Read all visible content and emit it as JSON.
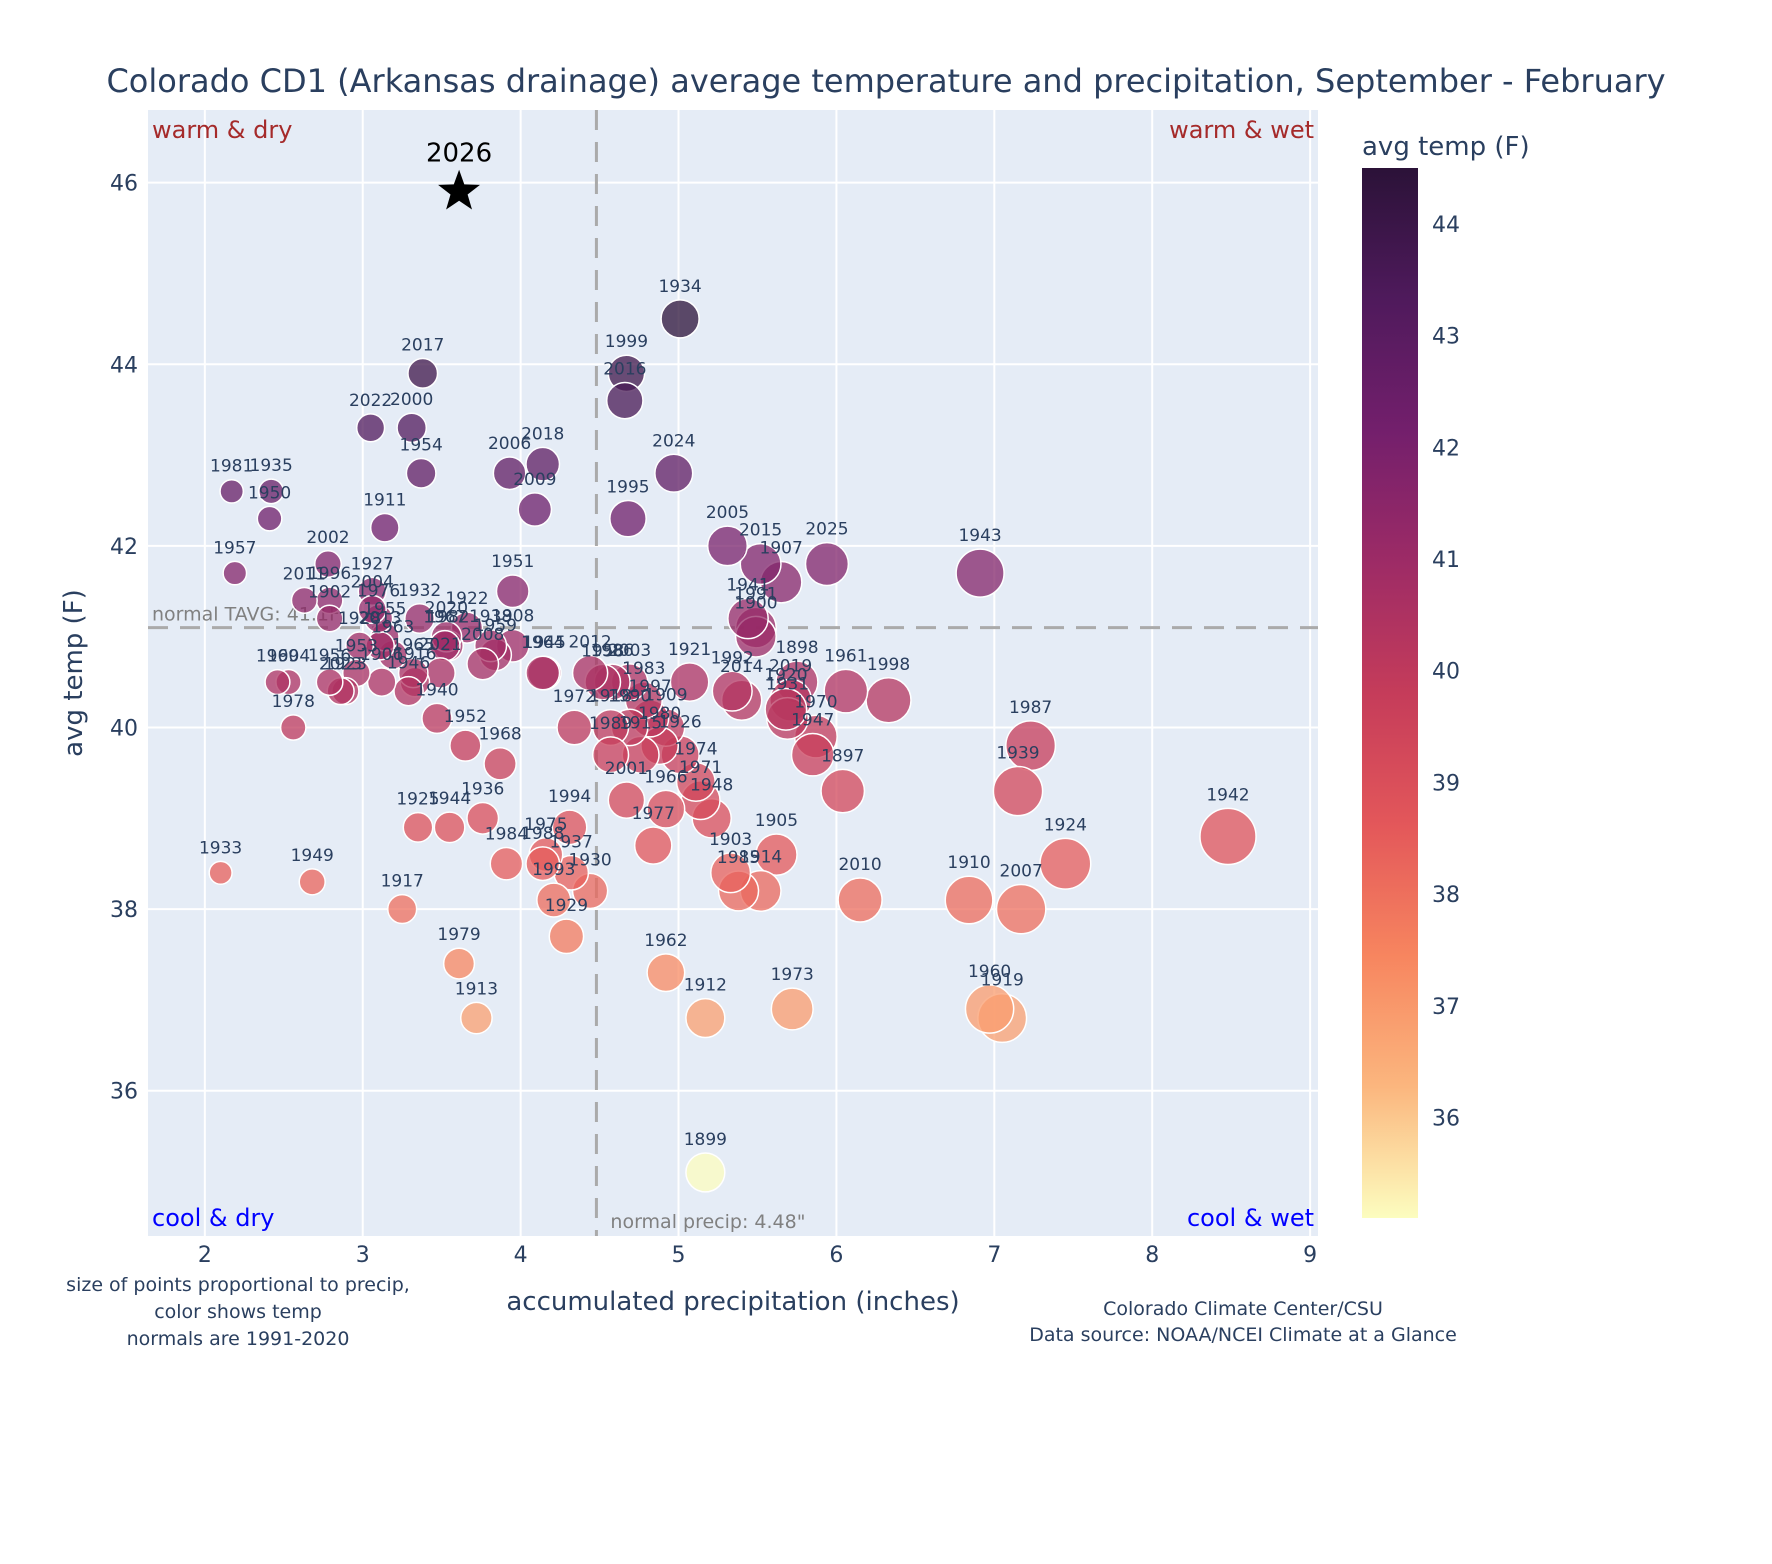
{
  "chart_data": {
    "type": "scatter",
    "title": "Colorado CD1 (Arkansas drainage) average temperature and precipitation, September - February",
    "xlabel": "accumulated precipitation (inches)",
    "ylabel": "avg temp (F)",
    "xlim": [
      1.64,
      9.05
    ],
    "ylim": [
      34.4,
      46.8
    ],
    "xticks": [
      2,
      3,
      4,
      5,
      6,
      7,
      8,
      9
    ],
    "yticks": [
      36,
      38,
      40,
      42,
      44,
      46
    ],
    "grid": true,
    "colorbar": {
      "title": "avg temp (F)",
      "range": [
        35.1,
        44.5
      ],
      "ticks": [
        36,
        37,
        38,
        39,
        40,
        41,
        42,
        43,
        44
      ],
      "colorscale": [
        "#fcfdbf",
        "#fbb67e",
        "#f7855f",
        "#e3575a",
        "#c53c5a",
        "#9d2b66",
        "#731f6c",
        "#4f1a5c",
        "#2b1238"
      ]
    },
    "normals": {
      "temp": 41.1,
      "temp_label": "normal TAVG: 41.1F",
      "precip": 4.48,
      "precip_label": "normal precip: 4.48\""
    },
    "quadrants": {
      "top_left": "warm & dry",
      "top_right": "warm & wet",
      "bottom_left": "cool & dry",
      "bottom_right": "cool & wet"
    },
    "highlight": {
      "label": "2026",
      "x": 3.61,
      "y": 45.9,
      "marker": "star"
    },
    "points": [
      {
        "year": "1934",
        "x": 5.01,
        "y": 44.5
      },
      {
        "year": "2017",
        "x": 3.38,
        "y": 43.9
      },
      {
        "year": "1999",
        "x": 4.67,
        "y": 43.9
      },
      {
        "year": "2016",
        "x": 4.66,
        "y": 43.6
      },
      {
        "year": "2022",
        "x": 3.05,
        "y": 43.3
      },
      {
        "year": "2000",
        "x": 3.31,
        "y": 43.3
      },
      {
        "year": "1954",
        "x": 3.37,
        "y": 42.8
      },
      {
        "year": "2006",
        "x": 3.93,
        "y": 42.8
      },
      {
        "year": "2018",
        "x": 4.14,
        "y": 42.9
      },
      {
        "year": "2024",
        "x": 4.97,
        "y": 42.8
      },
      {
        "year": "2009",
        "x": 4.09,
        "y": 42.4
      },
      {
        "year": "1995",
        "x": 4.68,
        "y": 42.3
      },
      {
        "year": "1981",
        "x": 2.17,
        "y": 42.6
      },
      {
        "year": "1935",
        "x": 2.42,
        "y": 42.6
      },
      {
        "year": "1950",
        "x": 2.41,
        "y": 42.3
      },
      {
        "year": "1911",
        "x": 3.14,
        "y": 42.2
      },
      {
        "year": "2005",
        "x": 5.31,
        "y": 42.0
      },
      {
        "year": "2015",
        "x": 5.52,
        "y": 41.8
      },
      {
        "year": "1907",
        "x": 5.65,
        "y": 41.6
      },
      {
        "year": "2025",
        "x": 5.94,
        "y": 41.8
      },
      {
        "year": "1943",
        "x": 6.91,
        "y": 41.7
      },
      {
        "year": "1957",
        "x": 2.19,
        "y": 41.7
      },
      {
        "year": "2002",
        "x": 2.78,
        "y": 41.8
      },
      {
        "year": "1951",
        "x": 3.95,
        "y": 41.5
      },
      {
        "year": "1941",
        "x": 5.44,
        "y": 41.2
      },
      {
        "year": "1991",
        "x": 5.49,
        "y": 41.1
      },
      {
        "year": "1900",
        "x": 5.49,
        "y": 41.0
      },
      {
        "year": "1927",
        "x": 3.06,
        "y": 41.5
      },
      {
        "year": "2011",
        "x": 2.63,
        "y": 41.4
      },
      {
        "year": "1996",
        "x": 2.79,
        "y": 41.4
      },
      {
        "year": "1902",
        "x": 2.79,
        "y": 41.2
      },
      {
        "year": "2004",
        "x": 3.06,
        "y": 41.3
      },
      {
        "year": "1932",
        "x": 3.36,
        "y": 41.2
      },
      {
        "year": "1976",
        "x": 3.1,
        "y": 41.2
      },
      {
        "year": "1955",
        "x": 3.14,
        "y": 41.0
      },
      {
        "year": "2013",
        "x": 3.11,
        "y": 40.9
      },
      {
        "year": "1928",
        "x": 2.98,
        "y": 40.9
      },
      {
        "year": "1963",
        "x": 3.19,
        "y": 40.8
      },
      {
        "year": "1922",
        "x": 3.66,
        "y": 41.1
      },
      {
        "year": "2020",
        "x": 3.53,
        "y": 41.0
      },
      {
        "year": "1967",
        "x": 3.52,
        "y": 40.9
      },
      {
        "year": "1982",
        "x": 3.54,
        "y": 40.9
      },
      {
        "year": "1938",
        "x": 3.81,
        "y": 40.9
      },
      {
        "year": "1908",
        "x": 3.95,
        "y": 40.9
      },
      {
        "year": "1959",
        "x": 3.84,
        "y": 40.8
      },
      {
        "year": "2008",
        "x": 3.76,
        "y": 40.7
      },
      {
        "year": "1964",
        "x": 4.14,
        "y": 40.6
      },
      {
        "year": "1945",
        "x": 4.15,
        "y": 40.6
      },
      {
        "year": "1969",
        "x": 2.46,
        "y": 40.5
      },
      {
        "year": "1904",
        "x": 2.53,
        "y": 40.5
      },
      {
        "year": "1956",
        "x": 2.79,
        "y": 40.5
      },
      {
        "year": "2023",
        "x": 2.86,
        "y": 40.4
      },
      {
        "year": "1923",
        "x": 2.89,
        "y": 40.4
      },
      {
        "year": "1953",
        "x": 2.96,
        "y": 40.6
      },
      {
        "year": "1906",
        "x": 3.12,
        "y": 40.5
      },
      {
        "year": "1965",
        "x": 3.32,
        "y": 40.6
      },
      {
        "year": "1916",
        "x": 3.33,
        "y": 40.5
      },
      {
        "year": "1946",
        "x": 3.29,
        "y": 40.4
      },
      {
        "year": "2021",
        "x": 3.49,
        "y": 40.6
      },
      {
        "year": "1978",
        "x": 2.56,
        "y": 40.0
      },
      {
        "year": "1940",
        "x": 3.47,
        "y": 40.1
      },
      {
        "year": "1952",
        "x": 3.65,
        "y": 39.8
      },
      {
        "year": "1968",
        "x": 3.87,
        "y": 39.6
      },
      {
        "year": "1936",
        "x": 3.76,
        "y": 39.0
      },
      {
        "year": "1925",
        "x": 3.35,
        "y": 38.9
      },
      {
        "year": "1944",
        "x": 3.55,
        "y": 38.9
      },
      {
        "year": "1984",
        "x": 3.91,
        "y": 38.5
      },
      {
        "year": "1975",
        "x": 4.16,
        "y": 38.6
      },
      {
        "year": "1988",
        "x": 4.14,
        "y": 38.5
      },
      {
        "year": "1994",
        "x": 4.31,
        "y": 38.9
      },
      {
        "year": "1937",
        "x": 4.32,
        "y": 38.4
      },
      {
        "year": "1993",
        "x": 4.21,
        "y": 38.1
      },
      {
        "year": "1930",
        "x": 4.44,
        "y": 38.2
      },
      {
        "year": "1929",
        "x": 4.29,
        "y": 37.7
      },
      {
        "year": "1933",
        "x": 2.1,
        "y": 38.4
      },
      {
        "year": "1949",
        "x": 2.68,
        "y": 38.3
      },
      {
        "year": "1917",
        "x": 3.25,
        "y": 38.0
      },
      {
        "year": "1979",
        "x": 3.61,
        "y": 37.4
      },
      {
        "year": "1913",
        "x": 3.72,
        "y": 36.8
      },
      {
        "year": "2012",
        "x": 4.44,
        "y": 40.6
      },
      {
        "year": "1986",
        "x": 4.58,
        "y": 40.5
      },
      {
        "year": "1958",
        "x": 4.52,
        "y": 40.5
      },
      {
        "year": "2003",
        "x": 4.69,
        "y": 40.5
      },
      {
        "year": "1983",
        "x": 4.78,
        "y": 40.3
      },
      {
        "year": "1997",
        "x": 4.82,
        "y": 40.1
      },
      {
        "year": "1972",
        "x": 4.34,
        "y": 40.0
      },
      {
        "year": "1918",
        "x": 4.57,
        "y": 40.0
      },
      {
        "year": "1990",
        "x": 4.69,
        "y": 40.0
      },
      {
        "year": "1909",
        "x": 4.92,
        "y": 40.0
      },
      {
        "year": "1980",
        "x": 4.88,
        "y": 39.8
      },
      {
        "year": "1989",
        "x": 4.57,
        "y": 39.7
      },
      {
        "year": "1915",
        "x": 4.76,
        "y": 39.7
      },
      {
        "year": "1926",
        "x": 5.01,
        "y": 39.7
      },
      {
        "year": "1921",
        "x": 5.07,
        "y": 40.5
      },
      {
        "year": "1992",
        "x": 5.34,
        "y": 40.4
      },
      {
        "year": "2014",
        "x": 5.4,
        "y": 40.3
      },
      {
        "year": "2001",
        "x": 4.67,
        "y": 39.2
      },
      {
        "year": "1966",
        "x": 4.92,
        "y": 39.1
      },
      {
        "year": "1974",
        "x": 5.11,
        "y": 39.4
      },
      {
        "year": "1971",
        "x": 5.14,
        "y": 39.2
      },
      {
        "year": "1948",
        "x": 5.21,
        "y": 39.0
      },
      {
        "year": "1977",
        "x": 4.84,
        "y": 38.7
      },
      {
        "year": "1905",
        "x": 5.62,
        "y": 38.6
      },
      {
        "year": "1903",
        "x": 5.33,
        "y": 38.4
      },
      {
        "year": "1985",
        "x": 5.38,
        "y": 38.2
      },
      {
        "year": "1914",
        "x": 5.52,
        "y": 38.2
      },
      {
        "year": "1898",
        "x": 5.75,
        "y": 40.5
      },
      {
        "year": "2019",
        "x": 5.71,
        "y": 40.3
      },
      {
        "year": "1920",
        "x": 5.68,
        "y": 40.2
      },
      {
        "year": "1931",
        "x": 5.69,
        "y": 40.1
      },
      {
        "year": "1970",
        "x": 5.87,
        "y": 39.9
      },
      {
        "year": "1947",
        "x": 5.85,
        "y": 39.7
      },
      {
        "year": "1897",
        "x": 6.04,
        "y": 39.3
      },
      {
        "year": "1961",
        "x": 6.06,
        "y": 40.4
      },
      {
        "year": "1998",
        "x": 6.33,
        "y": 40.3
      },
      {
        "year": "1987",
        "x": 7.23,
        "y": 39.8
      },
      {
        "year": "1939",
        "x": 7.15,
        "y": 39.3
      },
      {
        "year": "1924",
        "x": 7.45,
        "y": 38.5
      },
      {
        "year": "1942",
        "x": 8.48,
        "y": 38.8
      },
      {
        "year": "1910",
        "x": 6.84,
        "y": 38.1
      },
      {
        "year": "2007",
        "x": 7.17,
        "y": 38.0
      },
      {
        "year": "2010",
        "x": 6.15,
        "y": 38.1
      },
      {
        "year": "1960",
        "x": 6.97,
        "y": 36.9
      },
      {
        "year": "1919",
        "x": 7.05,
        "y": 36.8
      },
      {
        "year": "1973",
        "x": 5.72,
        "y": 36.9
      },
      {
        "year": "1912",
        "x": 5.17,
        "y": 36.8
      },
      {
        "year": "1962",
        "x": 4.92,
        "y": 37.3
      },
      {
        "year": "1899",
        "x": 5.17,
        "y": 35.1
      }
    ]
  },
  "notes": {
    "left": [
      "size of points proportional to precip,",
      "color shows temp",
      "normals are 1991-2020"
    ],
    "right": [
      "Colorado Climate Center/CSU",
      "Data source: NOAA/NCEI Climate at a Glance"
    ]
  }
}
